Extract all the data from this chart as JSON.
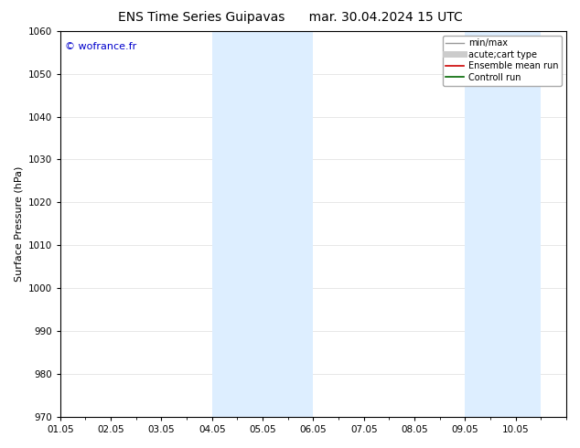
{
  "title_left": "ENS Time Series Guipavas",
  "title_right": "mar. 30.04.2024 15 UTC",
  "ylabel": "Surface Pressure (hPa)",
  "xlim": [
    0.0,
    10.0
  ],
  "ylim": [
    970,
    1060
  ],
  "yticks": [
    970,
    980,
    990,
    1000,
    1010,
    1020,
    1030,
    1040,
    1050,
    1060
  ],
  "xtick_labels": [
    "01.05",
    "02.05",
    "03.05",
    "04.05",
    "05.05",
    "06.05",
    "07.05",
    "08.05",
    "09.05",
    "10.05"
  ],
  "xtick_positions": [
    0,
    1,
    2,
    3,
    4,
    5,
    6,
    7,
    8,
    9
  ],
  "shaded_regions": [
    {
      "xmin": 3.0,
      "xmax": 3.5,
      "color": "#ddeeff"
    },
    {
      "xmin": 3.5,
      "xmax": 4.0,
      "color": "#ddeeff"
    },
    {
      "xmin": 7.5,
      "xmax": 8.0,
      "color": "#ddeeff"
    },
    {
      "xmin": 8.0,
      "xmax": 8.5,
      "color": "#ddeeff"
    }
  ],
  "watermark_text": "© wofrance.fr",
  "watermark_color": "#0000cc",
  "legend_entries": [
    {
      "label": "min/max",
      "color": "#999999",
      "linewidth": 1.0,
      "linestyle": "-"
    },
    {
      "label": "acute;cart type",
      "color": "#cccccc",
      "linewidth": 5,
      "linestyle": "-"
    },
    {
      "label": "Ensemble mean run",
      "color": "#cc0000",
      "linewidth": 1.2,
      "linestyle": "-"
    },
    {
      "label": "Controll run",
      "color": "#006600",
      "linewidth": 1.2,
      "linestyle": "-"
    }
  ],
  "background_color": "#ffffff",
  "grid_color": "#dddddd",
  "title_fontsize": 10,
  "axis_label_fontsize": 8,
  "tick_fontsize": 7.5,
  "legend_fontsize": 7,
  "watermark_fontsize": 8
}
